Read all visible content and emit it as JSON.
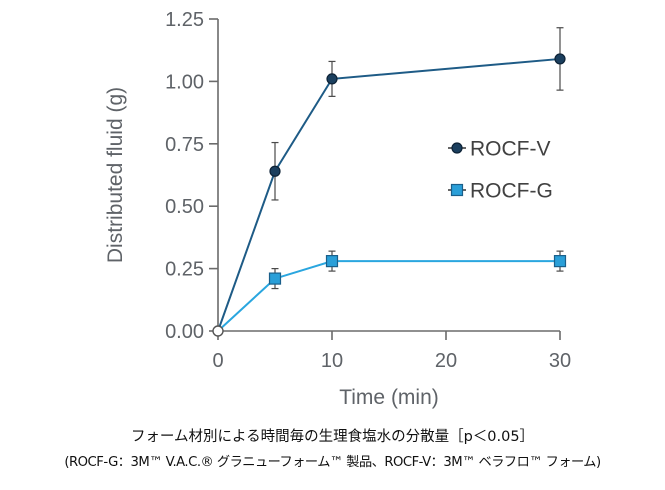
{
  "chart_data": {
    "type": "line",
    "x": [
      0,
      5,
      10,
      30
    ],
    "xlabel": "Time (min)",
    "ylabel": "Distributed fluid (g)",
    "xlim": [
      0,
      30
    ],
    "ylim": [
      0,
      1.25
    ],
    "x_ticks": [
      "0",
      "10",
      "20",
      "30"
    ],
    "x_tick_values": [
      0,
      10,
      20,
      30
    ],
    "y_ticks": [
      "0.00",
      "0.25",
      "0.50",
      "0.75",
      "1.00",
      "1.25"
    ],
    "y_tick_values": [
      0,
      0.25,
      0.5,
      0.75,
      1.0,
      1.25
    ],
    "grid": false,
    "legend_position": "right",
    "series": [
      {
        "name": "ROCF-V",
        "values": [
          0,
          0.64,
          1.01,
          1.09
        ],
        "error": [
          0,
          0.115,
          0.07,
          0.125
        ],
        "color": "#1b3f5e",
        "line_color": "#1e5b86",
        "marker": "circle"
      },
      {
        "name": "ROCF-G",
        "values": [
          0,
          0.21,
          0.28,
          0.28
        ],
        "error": [
          0,
          0.04,
          0.04,
          0.04
        ],
        "color": "#2a9fd8",
        "line_color": "#2aa6df",
        "marker": "square"
      }
    ]
  },
  "caption": {
    "line1": "フォーム材別による時間毎の生理食塩水の分散量［p＜0.05］",
    "line2": "(ROCF-G：3M™ V.A.C.® グラニューフォーム™ 製品、ROCF-V：3M™ ベラフロ™ フォーム)"
  }
}
